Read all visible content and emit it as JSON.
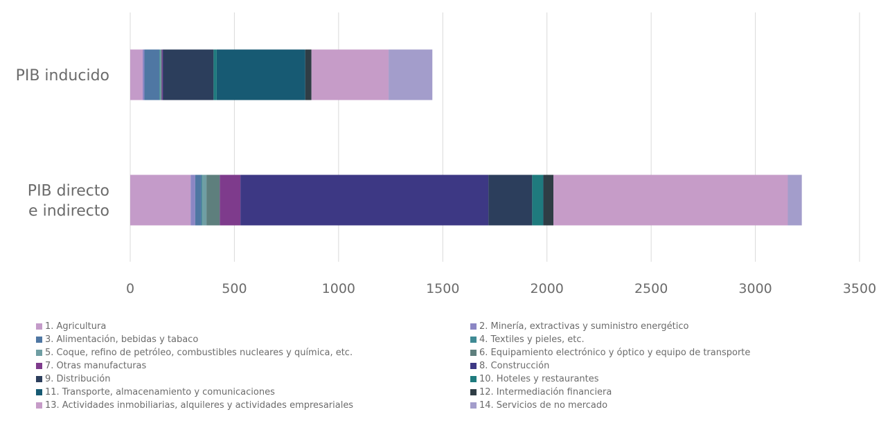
{
  "chart_data": {
    "type": "bar",
    "orientation": "horizontal",
    "stacked": true,
    "title": "",
    "xlabel": "",
    "ylabel": "",
    "xlim": [
      0,
      3500
    ],
    "xticks": [
      0,
      500,
      1000,
      1500,
      2000,
      2500,
      3000,
      3500
    ],
    "grid": true,
    "legend_position": "bottom",
    "categories": [
      "PIB inducido",
      "PIB directo e indirecto"
    ],
    "category_lines": [
      [
        "PIB inducido"
      ],
      [
        "PIB directo",
        "e indirecto"
      ]
    ],
    "series": [
      {
        "name": "1. Agricultura",
        "color": "#c49bc9",
        "values": [
          60,
          290
        ]
      },
      {
        "name": "2. Minería, extractivas y suministro energético",
        "color": "#8b86c4",
        "values": [
          8,
          22
        ]
      },
      {
        "name": "3. Alimentación, bebidas y tabaco",
        "color": "#4f77a3",
        "values": [
          72,
          30
        ]
      },
      {
        "name": "4. Textiles y pieles, etc.",
        "color": "#3f8a94",
        "values": [
          3,
          4
        ]
      },
      {
        "name": "5. Coque, refino de petróleo, combustibles nucleares y química, etc.",
        "color": "#6f9ea3",
        "values": [
          5,
          20
        ]
      },
      {
        "name": "6. Equipamiento electrónico y óptico y equipo de transporte",
        "color": "#5e7f7d",
        "values": [
          3,
          64
        ]
      },
      {
        "name": "7. Otras manufacturas",
        "color": "#7e3b8c",
        "values": [
          4,
          99
        ]
      },
      {
        "name": "8. Construcción",
        "color": "#3d3884",
        "values": [
          3,
          1190
        ]
      },
      {
        "name": "9. Distribución",
        "color": "#2c3e5c",
        "values": [
          242,
          210
        ]
      },
      {
        "name": "10. Hoteles y restaurantes",
        "color": "#1f7b7e",
        "values": [
          15,
          52
        ]
      },
      {
        "name": "11. Transporte, almacenamiento y comunicaciones",
        "color": "#175a73",
        "values": [
          425,
          2
        ]
      },
      {
        "name": "12. Intermediación financiera",
        "color": "#2f3d45",
        "values": [
          30,
          48
        ]
      },
      {
        "name": "13. Actividades inmobiliarias, alquileres y actividades empresariales",
        "color": "#c69cc8",
        "values": [
          370,
          1125
        ]
      },
      {
        "name": "14. Servicios de no mercado",
        "color": "#a39dcb",
        "values": [
          210,
          67
        ]
      }
    ]
  }
}
